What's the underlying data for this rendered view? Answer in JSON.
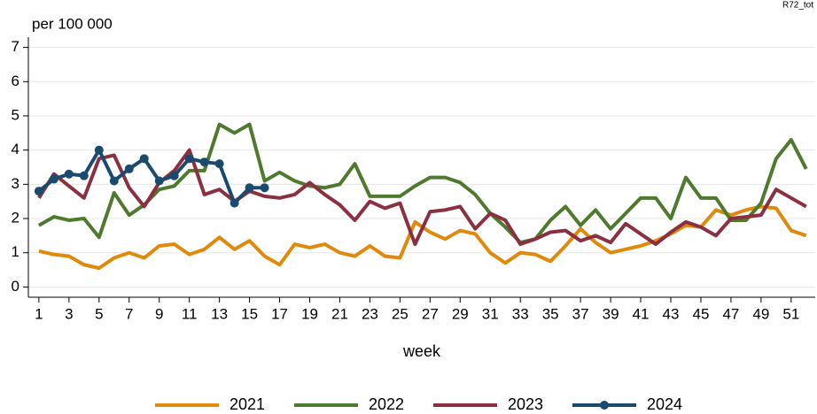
{
  "chart_data": {
    "type": "line",
    "ylabel": "per 100 000",
    "xlabel": "week",
    "corner_label": "R72_tot",
    "x": [
      1,
      2,
      3,
      4,
      5,
      6,
      7,
      8,
      9,
      10,
      11,
      12,
      13,
      14,
      15,
      16,
      17,
      18,
      19,
      20,
      21,
      22,
      23,
      24,
      25,
      26,
      27,
      28,
      29,
      30,
      31,
      32,
      33,
      34,
      35,
      36,
      37,
      38,
      39,
      40,
      41,
      42,
      43,
      44,
      45,
      46,
      47,
      48,
      49,
      50,
      51,
      52
    ],
    "xlim": [
      0.3,
      52.6
    ],
    "xticks": [
      1,
      3,
      5,
      7,
      9,
      11,
      13,
      15,
      17,
      19,
      21,
      23,
      25,
      27,
      29,
      31,
      33,
      35,
      37,
      39,
      41,
      43,
      45,
      47,
      49,
      51
    ],
    "ylim": [
      -0.3,
      7.3
    ],
    "yticks": [
      0,
      1,
      2,
      3,
      4,
      5,
      6,
      7
    ],
    "grid": true,
    "legend": "bottom",
    "series": [
      {
        "name": "2021",
        "color": "#e08a0b",
        "marker": false,
        "values": [
          1.05,
          0.95,
          0.9,
          0.65,
          0.55,
          0.85,
          1.0,
          0.85,
          1.2,
          1.25,
          0.95,
          1.1,
          1.45,
          1.1,
          1.35,
          0.9,
          0.65,
          1.25,
          1.15,
          1.25,
          1.0,
          0.9,
          1.2,
          0.9,
          0.85,
          1.9,
          1.6,
          1.4,
          1.65,
          1.55,
          1.0,
          0.7,
          1.0,
          0.95,
          0.75,
          1.2,
          1.7,
          1.3,
          1.0,
          1.1,
          1.2,
          1.35,
          1.55,
          1.8,
          1.75,
          2.25,
          2.1,
          2.25,
          2.35,
          2.3,
          1.65,
          1.5
        ]
      },
      {
        "name": "2022",
        "color": "#4e7a2e",
        "marker": false,
        "values": [
          1.8,
          2.05,
          1.95,
          2.0,
          1.45,
          2.75,
          2.1,
          2.4,
          2.85,
          2.95,
          3.4,
          3.4,
          4.75,
          4.5,
          4.75,
          3.1,
          3.35,
          3.1,
          2.95,
          2.9,
          3.0,
          3.6,
          2.65,
          2.65,
          2.65,
          2.95,
          3.2,
          3.2,
          3.05,
          2.7,
          2.15,
          1.75,
          1.3,
          1.4,
          1.95,
          2.35,
          1.8,
          2.25,
          1.7,
          2.15,
          2.6,
          2.6,
          2.0,
          3.2,
          2.6,
          2.6,
          1.95,
          1.95,
          2.45,
          3.75,
          4.3,
          3.45
        ]
      },
      {
        "name": "2023",
        "color": "#8b3040",
        "marker": false,
        "values": [
          2.6,
          3.3,
          2.95,
          2.6,
          3.75,
          3.85,
          2.9,
          2.35,
          3.05,
          3.4,
          4.0,
          2.7,
          2.85,
          2.5,
          2.8,
          2.65,
          2.6,
          2.7,
          3.05,
          2.7,
          2.4,
          1.95,
          2.5,
          2.3,
          2.45,
          1.25,
          2.2,
          2.25,
          2.35,
          1.7,
          2.15,
          1.95,
          1.25,
          1.4,
          1.6,
          1.65,
          1.35,
          1.5,
          1.3,
          1.85,
          1.55,
          1.25,
          1.6,
          1.9,
          1.75,
          1.5,
          2.0,
          2.05,
          2.1,
          2.85,
          2.6,
          2.35
        ]
      },
      {
        "name": "2024",
        "color": "#1a4a6e",
        "marker": true,
        "values": [
          2.8,
          3.15,
          3.3,
          3.25,
          4.0,
          3.1,
          3.45,
          3.75,
          3.1,
          3.25,
          3.75,
          3.65,
          3.6,
          2.45,
          2.9,
          2.9,
          null,
          null,
          null,
          null,
          null,
          null,
          null,
          null,
          null,
          null,
          null,
          null,
          null,
          null,
          null,
          null,
          null,
          null,
          null,
          null,
          null,
          null,
          null,
          null,
          null,
          null,
          null,
          null,
          null,
          null,
          null,
          null,
          null,
          null,
          null,
          null
        ]
      }
    ]
  }
}
